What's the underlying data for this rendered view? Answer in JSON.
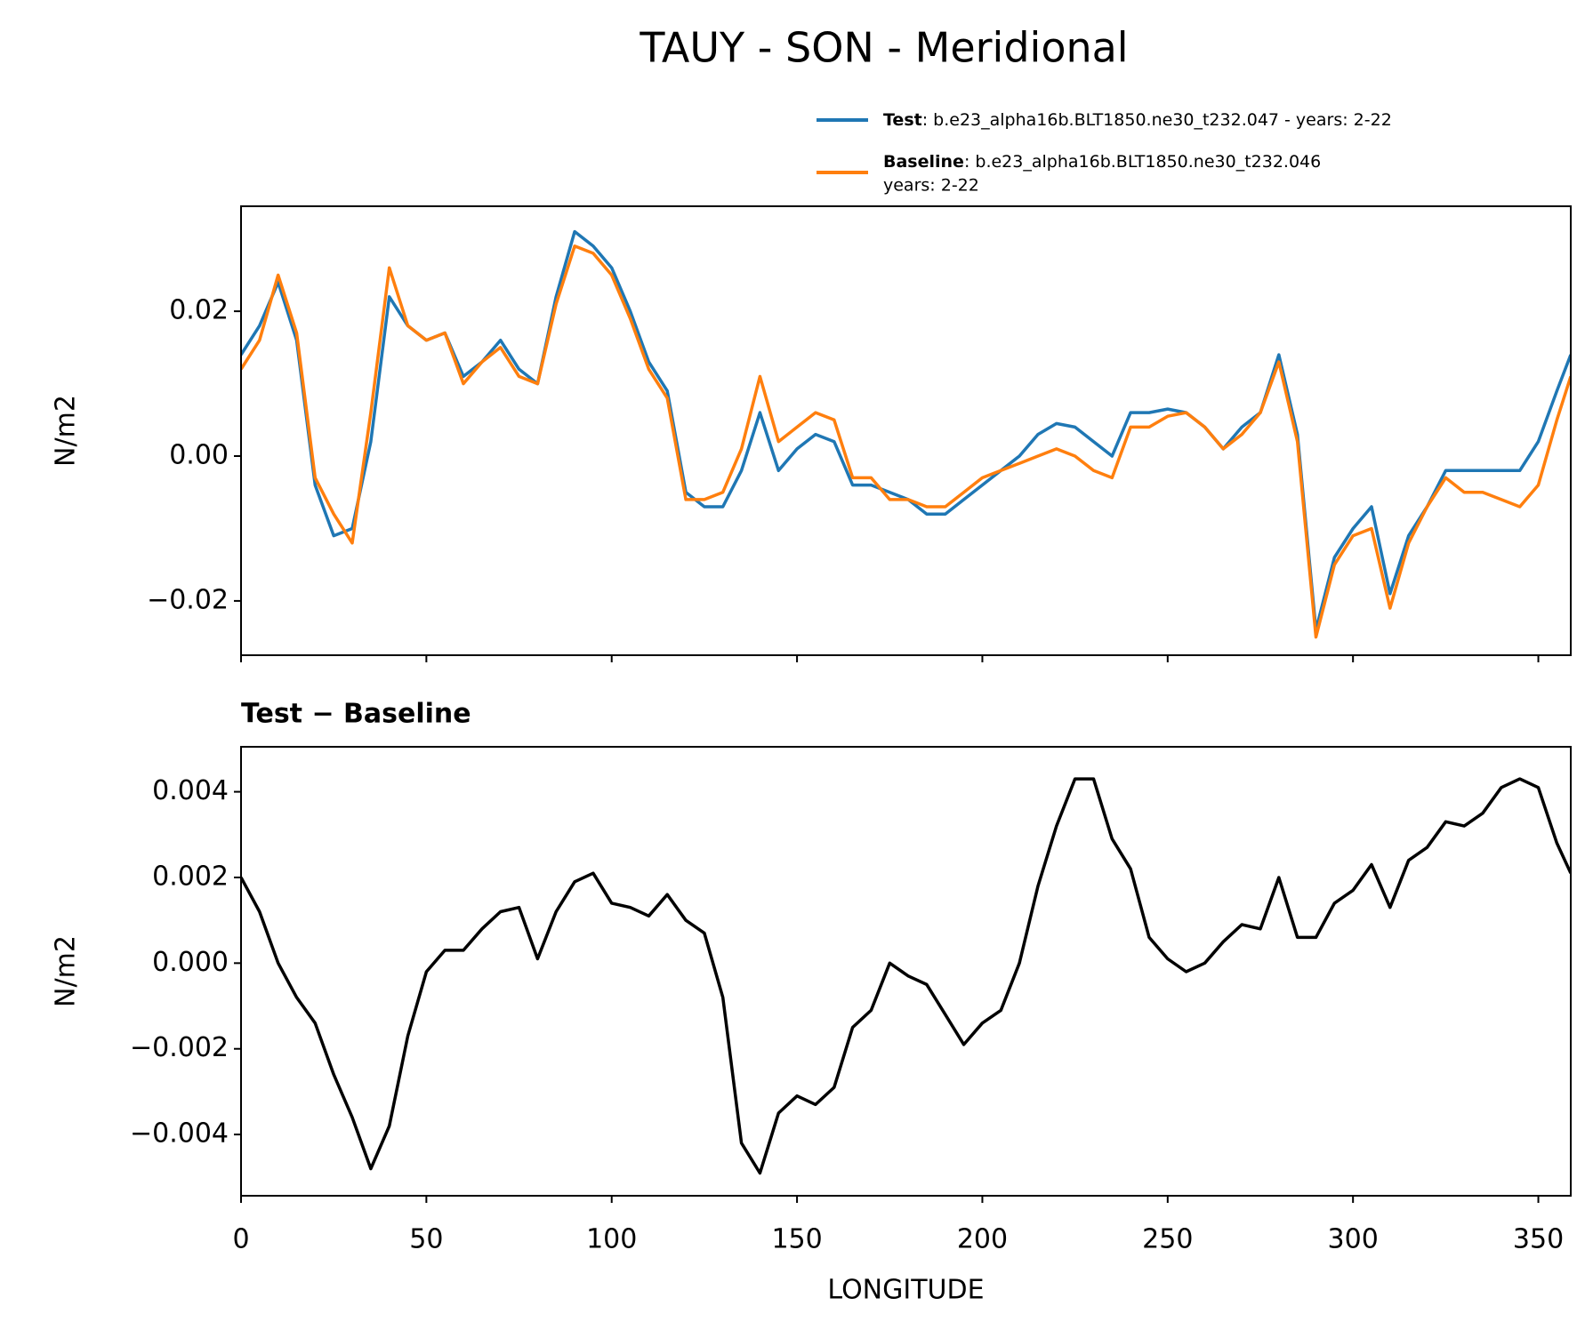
{
  "chart_data": [
    {
      "type": "line",
      "title": "TAUY - SON - Meridional",
      "ylabel": "N/m2",
      "x": [
        0,
        5,
        10,
        15,
        20,
        25,
        30,
        35,
        40,
        45,
        50,
        55,
        60,
        65,
        70,
        75,
        80,
        85,
        90,
        95,
        100,
        105,
        110,
        115,
        120,
        125,
        130,
        135,
        140,
        145,
        150,
        155,
        160,
        165,
        170,
        175,
        180,
        185,
        190,
        195,
        200,
        205,
        210,
        215,
        220,
        225,
        230,
        235,
        240,
        245,
        250,
        255,
        260,
        265,
        270,
        275,
        280,
        285,
        290,
        295,
        300,
        305,
        310,
        315,
        320,
        325,
        330,
        335,
        340,
        345,
        350,
        355,
        358.75
      ],
      "series": [
        {
          "name": "Test",
          "case": ": b.e23_alpha16b.BLT1850.ne30_t232.047 - years: 2-22",
          "color": "#1f77b4",
          "values": [
            0.014,
            0.018,
            0.024,
            0.016,
            -0.004,
            -0.011,
            -0.01,
            0.002,
            0.022,
            0.018,
            0.016,
            0.017,
            0.011,
            0.013,
            0.016,
            0.012,
            0.01,
            0.022,
            0.031,
            0.029,
            0.026,
            0.02,
            0.013,
            0.009,
            -0.005,
            -0.007,
            -0.007,
            -0.002,
            0.006,
            -0.002,
            0.001,
            0.003,
            0.002,
            -0.004,
            -0.004,
            -0.005,
            -0.006,
            -0.008,
            -0.008,
            -0.006,
            -0.004,
            -0.002,
            0.0,
            0.003,
            0.0045,
            0.004,
            0.002,
            0.0,
            0.006,
            0.006,
            0.0065,
            0.006,
            0.004,
            0.001,
            0.004,
            0.006,
            0.014,
            0.003,
            -0.024,
            -0.014,
            -0.01,
            -0.007,
            -0.019,
            -0.011,
            -0.007,
            -0.002,
            -0.002,
            -0.002,
            -0.002,
            -0.002,
            0.002,
            0.009,
            0.014
          ]
        },
        {
          "name": "Baseline",
          "case": ": b.e23_alpha16b.BLT1850.ne30_t232.046",
          "case2": "years: 2-22",
          "color": "#ff7f0e",
          "values": [
            0.012,
            0.016,
            0.025,
            0.017,
            -0.003,
            -0.008,
            -0.012,
            0.006,
            0.026,
            0.018,
            0.016,
            0.017,
            0.01,
            0.013,
            0.015,
            0.011,
            0.01,
            0.021,
            0.029,
            0.028,
            0.025,
            0.019,
            0.012,
            0.008,
            -0.006,
            -0.006,
            -0.005,
            0.001,
            0.011,
            0.002,
            0.004,
            0.006,
            0.005,
            -0.003,
            -0.003,
            -0.006,
            -0.006,
            -0.007,
            -0.007,
            -0.005,
            -0.003,
            -0.002,
            -0.001,
            0.0,
            0.001,
            0.0,
            -0.002,
            -0.003,
            0.004,
            0.004,
            0.0055,
            0.006,
            0.004,
            0.001,
            0.003,
            0.006,
            0.013,
            0.002,
            -0.025,
            -0.015,
            -0.011,
            -0.01,
            -0.021,
            -0.012,
            -0.007,
            -0.003,
            -0.005,
            -0.005,
            -0.006,
            -0.007,
            -0.004,
            0.005,
            0.011
          ]
        }
      ],
      "xlim": [
        0,
        358.75
      ],
      "xticks": [
        0,
        50,
        100,
        150,
        200,
        250,
        300,
        350
      ],
      "ylim": [
        -0.0275,
        0.0345
      ],
      "yticks": [
        {
          "value": -0.02,
          "label": "−0.02"
        },
        {
          "value": 0,
          "label": "0.00"
        },
        0.02
      ]
    },
    {
      "type": "line",
      "subtitle": "Test − Baseline",
      "ylabel": "N/m2",
      "xlabel": "LONGITUDE",
      "x": [
        0,
        5,
        10,
        15,
        20,
        25,
        30,
        35,
        40,
        45,
        50,
        55,
        60,
        65,
        70,
        75,
        80,
        85,
        90,
        95,
        100,
        105,
        110,
        115,
        120,
        125,
        130,
        135,
        140,
        145,
        150,
        155,
        160,
        165,
        170,
        175,
        180,
        185,
        190,
        195,
        200,
        205,
        210,
        215,
        220,
        225,
        230,
        235,
        240,
        245,
        250,
        255,
        260,
        265,
        270,
        275,
        280,
        285,
        290,
        295,
        300,
        305,
        310,
        315,
        320,
        325,
        330,
        335,
        340,
        345,
        350,
        355,
        358.75
      ],
      "series": [
        {
          "color": "#000000",
          "values": [
            0.002,
            0.0012,
            0.0,
            -0.0008,
            -0.0014,
            -0.0026,
            -0.0036,
            -0.0048,
            -0.0038,
            -0.0017,
            -0.0002,
            0.0003,
            0.0003,
            0.0008,
            0.0012,
            0.0013,
            0.0001,
            0.0012,
            0.0019,
            0.0021,
            0.0014,
            0.0013,
            0.0011,
            0.0016,
            0.001,
            0.0007,
            -0.0008,
            -0.0042,
            -0.0049,
            -0.0035,
            -0.0031,
            -0.0033,
            -0.0029,
            -0.0015,
            -0.0011,
            0.0,
            -0.0003,
            -0.0005,
            -0.0012,
            -0.0019,
            -0.0014,
            -0.0011,
            0.0,
            0.0018,
            0.0032,
            0.0043,
            0.0043,
            0.0029,
            0.0022,
            0.0006,
            0.0001,
            -0.0002,
            0.0,
            0.0005,
            0.0009,
            0.0008,
            0.002,
            0.0006,
            0.0006,
            0.0014,
            0.0017,
            0.0023,
            0.0013,
            0.0024,
            0.0027,
            0.0033,
            0.0032,
            0.0035,
            0.0041,
            0.0043,
            0.0041,
            0.0028,
            0.0021
          ]
        }
      ],
      "xlim": [
        0,
        358.75
      ],
      "xticks": [
        0,
        50,
        100,
        150,
        200,
        250,
        300,
        350
      ],
      "ylim": [
        -0.00543,
        0.00505
      ],
      "yticks": [
        {
          "value": -0.004,
          "label": "−0.004"
        },
        {
          "value": -0.002,
          "label": "−0.002"
        },
        {
          "value": 0,
          "label": "0.000"
        },
        0.002,
        0.004
      ]
    }
  ]
}
